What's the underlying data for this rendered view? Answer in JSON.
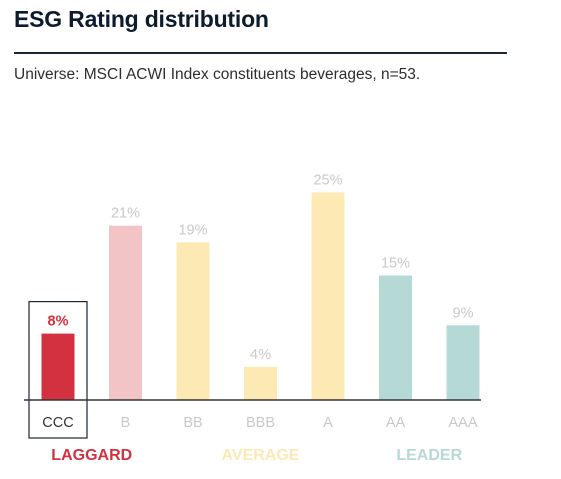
{
  "title": "ESG Rating distribution",
  "subtitle": "Universe: MSCI ACWI Index constituents beverages, n=53.",
  "chart_data": {
    "type": "bar",
    "title": "ESG Rating distribution",
    "categories": [
      "CCC",
      "B",
      "BB",
      "BBB",
      "A",
      "AA",
      "AAA"
    ],
    "values": [
      8,
      21,
      19,
      4,
      25,
      15,
      9
    ],
    "value_labels": [
      "8%",
      "21%",
      "19%",
      "4%",
      "25%",
      "15%",
      "9%"
    ],
    "unit": "%",
    "bar_colors": [
      "#d33140",
      "#f2c4c6",
      "#fde9b3",
      "#fde9b3",
      "#fde9b3",
      "#b5d9d5",
      "#b5d9d5"
    ],
    "highlighted_category": "CCC",
    "highlight_color": "#d33140",
    "muted_label_color": "#c9c9c9",
    "groups": [
      {
        "label": "LAGGARD",
        "categories": [
          "CCC",
          "B"
        ],
        "color": "#d33140"
      },
      {
        "label": "AVERAGE",
        "categories": [
          "BB",
          "BBB",
          "A"
        ],
        "color": "#fde9b3"
      },
      {
        "label": "LEADER",
        "categories": [
          "AA",
          "AAA"
        ],
        "color": "#b5d9d5"
      }
    ],
    "grid": false
  }
}
